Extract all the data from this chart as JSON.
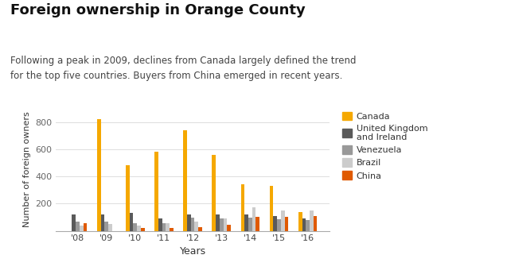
{
  "title": "Foreign ownership in Orange County",
  "subtitle": "Following a peak in 2009, declines from Canada largely defined the trend\nfor the top five countries. Buyers from China emerged in recent years.",
  "xlabel": "Years",
  "ylabel": "Number of foreign owners",
  "years": [
    "'08",
    "'09",
    "'10",
    "'11",
    "'12",
    "'13",
    "'14",
    "'15",
    "'16"
  ],
  "canada": [
    0,
    820,
    480,
    580,
    740,
    560,
    340,
    330,
    140
  ],
  "uk_ireland": [
    120,
    120,
    130,
    90,
    120,
    120,
    120,
    110,
    90
  ],
  "venezuela": [
    70,
    70,
    55,
    55,
    95,
    90,
    95,
    85,
    80
  ],
  "brazil": [
    40,
    50,
    40,
    55,
    70,
    90,
    170,
    150,
    150
  ],
  "china": [
    55,
    0,
    20,
    20,
    25,
    45,
    100,
    100,
    110
  ],
  "colors": {
    "canada": "#F5A800",
    "uk_ireland": "#5A5A5A",
    "venezuela": "#999999",
    "brazil": "#CCCCCC",
    "china": "#E05A00"
  },
  "legend_labels": [
    "Canada",
    "United Kingdom\nand Ireland",
    "Venezuela",
    "Brazil",
    "China"
  ],
  "ylim": [
    0,
    900
  ],
  "yticks": [
    200,
    400,
    600,
    800
  ],
  "background_color": "#FFFFFF",
  "title_fontsize": 13,
  "subtitle_fontsize": 8.5,
  "axis_fontsize": 8,
  "legend_fontsize": 8
}
